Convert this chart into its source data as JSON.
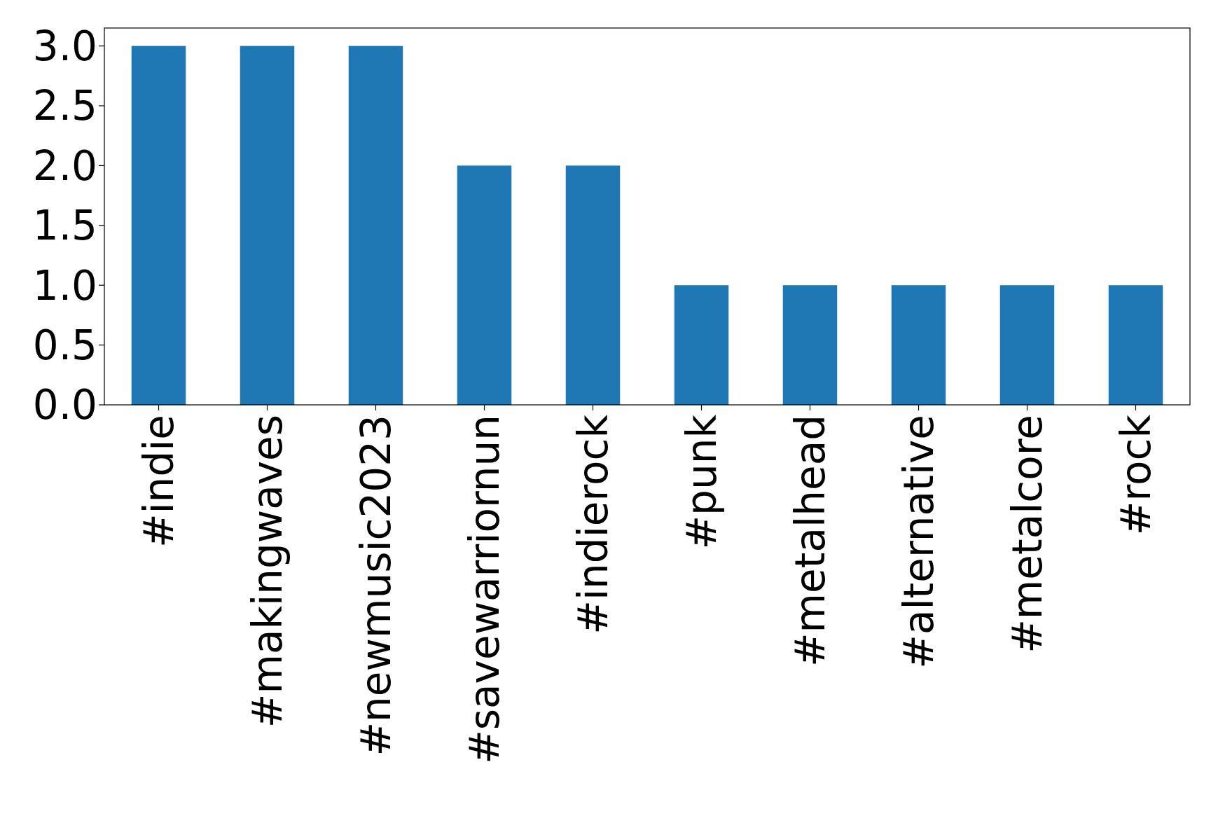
{
  "chart_data": {
    "type": "bar",
    "categories": [
      "#indie",
      "#makingwaves",
      "#newmusic2023",
      "#savewarriornun",
      "#indierock",
      "#punk",
      "#metalhead",
      "#alternative",
      "#metalcore",
      "#rock"
    ],
    "values": [
      3,
      3,
      3,
      2,
      2,
      1,
      1,
      1,
      1,
      1
    ],
    "color": "#1f77b4",
    "ylim": [
      0,
      3.15
    ],
    "yticks": [
      {
        "value": 0,
        "label": "0.0"
      },
      {
        "value": 0.5,
        "label": "0.5"
      },
      {
        "value": 1,
        "label": "1.0"
      },
      {
        "value": 1.5,
        "label": "1.5"
      },
      {
        "value": 2,
        "label": "2.0"
      },
      {
        "value": 2.5,
        "label": "2.5"
      },
      {
        "value": 3,
        "label": "3.0"
      }
    ],
    "grid": false
  }
}
